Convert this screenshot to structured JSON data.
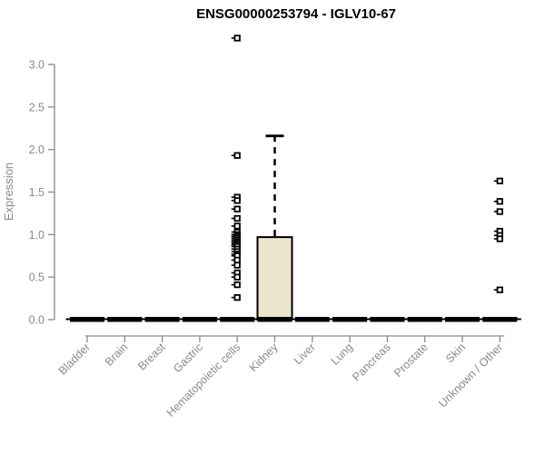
{
  "chart_data": {
    "type": "boxplot",
    "title": "ENSG00000253794 - IGLV10-67",
    "ylabel": "Expression",
    "xlabel": "",
    "ylim": [
      0,
      3.3
    ],
    "yticks": [
      0,
      0.5,
      1,
      1.5,
      2,
      2.5,
      3
    ],
    "ytick_labels": [
      "0.0",
      "0.5",
      "1.0",
      "1.5",
      "2.0",
      "2.5",
      "3.0"
    ],
    "categories": [
      "Bladder",
      "Brain",
      "Breast",
      "Gastric",
      "Hematopoietic cells",
      "Kidney",
      "Liver",
      "Lung",
      "Pancreas",
      "Prostate",
      "Skin",
      "Unknown / Other"
    ],
    "grid": "off",
    "legend": "none",
    "boxes": [
      {
        "category": "Bladder",
        "median": 0,
        "q1": 0,
        "q3": 0,
        "whisker_low": 0,
        "whisker_high": 0,
        "outliers": []
      },
      {
        "category": "Brain",
        "median": 0,
        "q1": 0,
        "q3": 0,
        "whisker_low": 0,
        "whisker_high": 0,
        "outliers": []
      },
      {
        "category": "Breast",
        "median": 0,
        "q1": 0,
        "q3": 0,
        "whisker_low": 0,
        "whisker_high": 0,
        "outliers": []
      },
      {
        "category": "Gastric",
        "median": 0,
        "q1": 0,
        "q3": 0,
        "whisker_low": 0,
        "whisker_high": 0,
        "outliers": []
      },
      {
        "category": "Hematopoietic cells",
        "median": 0,
        "q1": 0,
        "q3": 0,
        "whisker_low": 0,
        "whisker_high": 0,
        "outliers": [
          3.31,
          1.93,
          1.44,
          1.4,
          1.3,
          1.19,
          1.1,
          1.03,
          1.0,
          0.98,
          0.96,
          0.94,
          0.92,
          0.9,
          0.88,
          0.86,
          0.83,
          0.8,
          0.77,
          0.75,
          0.7,
          0.64,
          0.55,
          0.5,
          0.41,
          0.26
        ]
      },
      {
        "category": "Kidney",
        "median": 0,
        "q1": 0,
        "q3": 0.97,
        "whisker_low": 0,
        "whisker_high": 2.16,
        "outliers": []
      },
      {
        "category": "Liver",
        "median": 0,
        "q1": 0,
        "q3": 0,
        "whisker_low": 0,
        "whisker_high": 0,
        "outliers": []
      },
      {
        "category": "Lung",
        "median": 0,
        "q1": 0,
        "q3": 0,
        "whisker_low": 0,
        "whisker_high": 0,
        "outliers": []
      },
      {
        "category": "Pancreas",
        "median": 0,
        "q1": 0,
        "q3": 0,
        "whisker_low": 0,
        "whisker_high": 0,
        "outliers": []
      },
      {
        "category": "Prostate",
        "median": 0,
        "q1": 0,
        "q3": 0,
        "whisker_low": 0,
        "whisker_high": 0,
        "outliers": []
      },
      {
        "category": "Skin",
        "median": 0,
        "q1": 0,
        "q3": 0,
        "whisker_low": 0,
        "whisker_high": 0,
        "outliers": []
      },
      {
        "category": "Unknown / Other",
        "median": 0,
        "q1": 0,
        "q3": 0,
        "whisker_low": 0,
        "whisker_high": 0,
        "outliers": [
          1.63,
          1.39,
          1.27,
          1.04,
          0.99,
          0.95,
          0.35
        ]
      }
    ],
    "colors": {
      "box_fill": "#ebe5cb",
      "box_stroke": "#000000",
      "axis": "#8a8a8a",
      "tick_text": "#8a8a8a",
      "title_text": "#000000",
      "median": "#000000",
      "outlier_stroke": "#000000",
      "outlier_fill": "#ffffff",
      "background": "#ffffff"
    }
  }
}
